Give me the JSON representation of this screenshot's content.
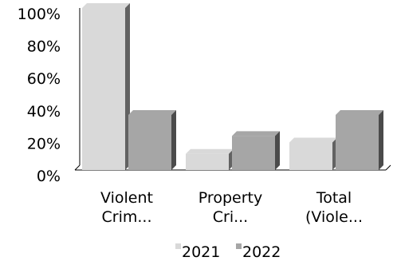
{
  "chart_data": {
    "type": "bar",
    "style": "3d-clustered",
    "categories": [
      "Violent\nCrim...",
      "Property\nCri...",
      "Total\n(Viole..."
    ],
    "series": [
      {
        "name": "2021",
        "values": [
          100,
          10,
          17
        ],
        "color": "#d9d9d9"
      },
      {
        "name": "2022",
        "values": [
          34,
          21,
          34
        ],
        "color": "#a6a6a6"
      }
    ],
    "ylim": [
      0,
      100
    ],
    "yticks": [
      0,
      20,
      40,
      60,
      80,
      100
    ],
    "ytick_suffix": "%",
    "grid": false,
    "legend": "bottom",
    "title": "",
    "xlabel": "",
    "ylabel": ""
  }
}
